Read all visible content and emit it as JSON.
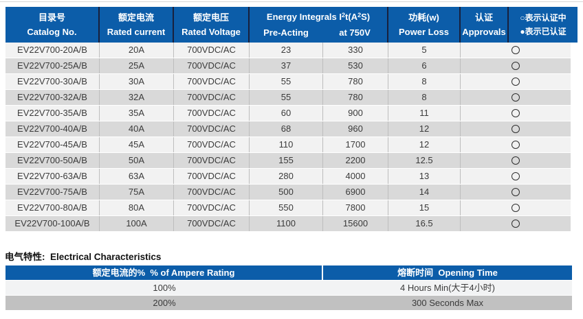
{
  "colors": {
    "header_blue": "#0c5da9",
    "header_divider_dark": "#18203c",
    "row_light": "#f2f2f2",
    "row_gray": "#d9d9d9",
    "elec_row_light": "#f2f3f4",
    "elec_row_gray": "#c1c1c1",
    "body_text": "#3a3a3a"
  },
  "main_table": {
    "header": {
      "catalog": {
        "zh": "目录号",
        "en": "Catalog No."
      },
      "current": {
        "zh": "额定电流",
        "en": "Rated current"
      },
      "voltage": {
        "zh": "额定电压",
        "en": "Rated Voltage"
      },
      "energy": {
        "title_parts": {
          "p1": "Energy Integrals I",
          "sup1": "2",
          "p2": "t(A",
          "sup2": "2",
          "p3": "S)"
        },
        "sub_left": "Pre-Acting",
        "sub_right": "at 750V"
      },
      "power": {
        "zh": "功耗(w)",
        "en": "Power Loss"
      },
      "approvals": {
        "zh": "认证",
        "en": "Approvals"
      },
      "legend": {
        "line1": "○表示认证中",
        "line2": "●表示已认证"
      }
    },
    "status_icon": "circle-outline (认证中 / certification in progress)",
    "rows": [
      {
        "catalog": "EV22V700-20A/B",
        "current": "20A",
        "voltage": "700VDC/AC",
        "pre_acting": "23",
        "at_750v": "330",
        "power_loss": "5"
      },
      {
        "catalog": "EV22V700-25A/B",
        "current": "25A",
        "voltage": "700VDC/AC",
        "pre_acting": "37",
        "at_750v": "530",
        "power_loss": "6"
      },
      {
        "catalog": "EV22V700-30A/B",
        "current": "30A",
        "voltage": "700VDC/AC",
        "pre_acting": "55",
        "at_750v": "780",
        "power_loss": "8"
      },
      {
        "catalog": "EV22V700-32A/B",
        "current": "32A",
        "voltage": "700VDC/AC",
        "pre_acting": "55",
        "at_750v": "780",
        "power_loss": "8"
      },
      {
        "catalog": "EV22V700-35A/B",
        "current": "35A",
        "voltage": "700VDC/AC",
        "pre_acting": "60",
        "at_750v": "900",
        "power_loss": "11"
      },
      {
        "catalog": "EV22V700-40A/B",
        "current": "40A",
        "voltage": "700VDC/AC",
        "pre_acting": "68",
        "at_750v": "960",
        "power_loss": "12"
      },
      {
        "catalog": "EV22V700-45A/B",
        "current": "45A",
        "voltage": "700VDC/AC",
        "pre_acting": "110",
        "at_750v": "1700",
        "power_loss": "12"
      },
      {
        "catalog": "EV22V700-50A/B",
        "current": "50A",
        "voltage": "700VDC/AC",
        "pre_acting": "155",
        "at_750v": "2200",
        "power_loss": "12.5"
      },
      {
        "catalog": "EV22V700-63A/B",
        "current": "63A",
        "voltage": "700VDC/AC",
        "pre_acting": "280",
        "at_750v": "4000",
        "power_loss": "13"
      },
      {
        "catalog": "EV22V700-75A/B",
        "current": "75A",
        "voltage": "700VDC/AC",
        "pre_acting": "500",
        "at_750v": "6900",
        "power_loss": "14"
      },
      {
        "catalog": "EV22V700-80A/B",
        "current": "80A",
        "voltage": "700VDC/AC",
        "pre_acting": "550",
        "at_750v": "7800",
        "power_loss": "15"
      },
      {
        "catalog": "EV22V700-100A/B",
        "current": "100A",
        "voltage": "700VDC/AC",
        "pre_acting": "1100",
        "at_750v": "15600",
        "power_loss": "16.5"
      }
    ]
  },
  "electrical": {
    "section_title": "电气特性:  Electrical Characteristics",
    "header": {
      "left": "额定电流的%  % of Ampere Rating",
      "right": "熔断时间  Opening Time"
    },
    "rows": [
      {
        "percent": "100%",
        "time": "4 Hours Min(大于4小时)"
      },
      {
        "percent": "200%",
        "time": "300 Seconds Max"
      }
    ]
  }
}
